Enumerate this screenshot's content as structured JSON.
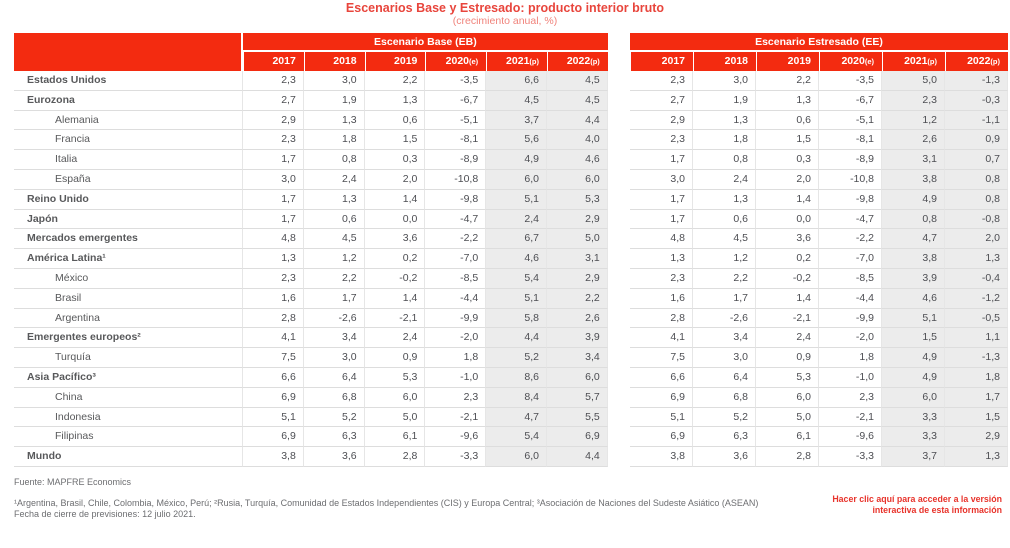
{
  "title": "Escenarios Base y Estresado: producto interior bruto",
  "subtitle": "(crecimiento anual, %)",
  "colors": {
    "brand_red": "#f32b10",
    "title_red": "#e8453c",
    "shaded_column_bg": "#ececec",
    "body_text_gray": "#4d4e53"
  },
  "chart_data": {
    "type": "table",
    "title": "Escenarios Base y Estresado: producto interior bruto",
    "subtitle": "(crecimiento anual, %)",
    "columns": [
      {
        "year": "2017",
        "tag": ""
      },
      {
        "year": "2018",
        "tag": ""
      },
      {
        "year": "2019",
        "tag": ""
      },
      {
        "year": "2020",
        "tag": "(e)"
      },
      {
        "year": "2021",
        "tag": "(p)"
      },
      {
        "year": "2022",
        "tag": "(p)"
      }
    ],
    "shaded_column_indexes": [
      4,
      5
    ],
    "row_labels": [
      {
        "label": "Estados Unidos",
        "indent": 0
      },
      {
        "label": "Eurozona",
        "indent": 0
      },
      {
        "label": "Alemania",
        "indent": 1
      },
      {
        "label": "Francia",
        "indent": 1
      },
      {
        "label": "Italia",
        "indent": 1
      },
      {
        "label": "España",
        "indent": 1
      },
      {
        "label": "Reino Unido",
        "indent": 0
      },
      {
        "label": "Japón",
        "indent": 0
      },
      {
        "label": "Mercados emergentes",
        "indent": 0
      },
      {
        "label": "América Latina¹",
        "indent": 0
      },
      {
        "label": "México",
        "indent": 1
      },
      {
        "label": "Brasil",
        "indent": 1
      },
      {
        "label": "Argentina",
        "indent": 1
      },
      {
        "label": "Emergentes europeos²",
        "indent": 0
      },
      {
        "label": "Turquía",
        "indent": 1
      },
      {
        "label": "Asia Pacífico³",
        "indent": 0
      },
      {
        "label": "China",
        "indent": 1
      },
      {
        "label": "Indonesia",
        "indent": 1
      },
      {
        "label": "Filipinas",
        "indent": 1
      },
      {
        "label": "Mundo",
        "indent": 0
      }
    ],
    "scenarios": [
      {
        "name": "Escenario Base (EB)",
        "rows": [
          [
            2.3,
            3.0,
            2.2,
            -3.5,
            6.6,
            4.5
          ],
          [
            2.7,
            1.9,
            1.3,
            -6.7,
            4.5,
            4.5
          ],
          [
            2.9,
            1.3,
            0.6,
            -5.1,
            3.7,
            4.4
          ],
          [
            2.3,
            1.8,
            1.5,
            -8.1,
            5.6,
            4.0
          ],
          [
            1.7,
            0.8,
            0.3,
            -8.9,
            4.9,
            4.6
          ],
          [
            3.0,
            2.4,
            2.0,
            -10.8,
            6.0,
            6.0
          ],
          [
            1.7,
            1.3,
            1.4,
            -9.8,
            5.1,
            5.3
          ],
          [
            1.7,
            0.6,
            0.0,
            -4.7,
            2.4,
            2.9
          ],
          [
            4.8,
            4.5,
            3.6,
            -2.2,
            6.7,
            5.0
          ],
          [
            1.3,
            1.2,
            0.2,
            -7.0,
            4.6,
            3.1
          ],
          [
            2.3,
            2.2,
            -0.2,
            -8.5,
            5.4,
            2.9
          ],
          [
            1.6,
            1.7,
            1.4,
            -4.4,
            5.1,
            2.2
          ],
          [
            2.8,
            -2.6,
            -2.1,
            -9.9,
            5.8,
            2.6
          ],
          [
            4.1,
            3.4,
            2.4,
            -2.0,
            4.4,
            3.9
          ],
          [
            7.5,
            3.0,
            0.9,
            1.8,
            5.2,
            3.4
          ],
          [
            6.6,
            6.4,
            5.3,
            -1.0,
            8.6,
            6.0
          ],
          [
            6.9,
            6.8,
            6.0,
            2.3,
            8.4,
            5.7
          ],
          [
            5.1,
            5.2,
            5.0,
            -2.1,
            4.7,
            5.5
          ],
          [
            6.9,
            6.3,
            6.1,
            -9.6,
            5.4,
            6.9
          ],
          [
            3.8,
            3.6,
            2.8,
            -3.3,
            6.0,
            4.4
          ]
        ]
      },
      {
        "name": "Escenario Estresado (EE)",
        "rows": [
          [
            2.3,
            3.0,
            2.2,
            -3.5,
            5.0,
            -1.3
          ],
          [
            2.7,
            1.9,
            1.3,
            -6.7,
            2.3,
            -0.3
          ],
          [
            2.9,
            1.3,
            0.6,
            -5.1,
            1.2,
            -1.1
          ],
          [
            2.3,
            1.8,
            1.5,
            -8.1,
            2.6,
            0.9
          ],
          [
            1.7,
            0.8,
            0.3,
            -8.9,
            3.1,
            0.7
          ],
          [
            3.0,
            2.4,
            2.0,
            -10.8,
            3.8,
            0.8
          ],
          [
            1.7,
            1.3,
            1.4,
            -9.8,
            4.9,
            0.8
          ],
          [
            1.7,
            0.6,
            0.0,
            -4.7,
            0.8,
            -0.8
          ],
          [
            4.8,
            4.5,
            3.6,
            -2.2,
            4.7,
            2.0
          ],
          [
            1.3,
            1.2,
            0.2,
            -7.0,
            3.8,
            1.3
          ],
          [
            2.3,
            2.2,
            -0.2,
            -8.5,
            3.9,
            -0.4
          ],
          [
            1.6,
            1.7,
            1.4,
            -4.4,
            4.6,
            -1.2
          ],
          [
            2.8,
            -2.6,
            -2.1,
            -9.9,
            5.1,
            -0.5
          ],
          [
            4.1,
            3.4,
            2.4,
            -2.0,
            1.5,
            1.1
          ],
          [
            7.5,
            3.0,
            0.9,
            1.8,
            4.9,
            -1.3
          ],
          [
            6.6,
            6.4,
            5.3,
            -1.0,
            4.9,
            1.8
          ],
          [
            6.9,
            6.8,
            6.0,
            2.3,
            6.0,
            1.7
          ],
          [
            5.1,
            5.2,
            5.0,
            -2.1,
            3.3,
            1.5
          ],
          [
            6.9,
            6.3,
            6.1,
            -9.6,
            3.3,
            2.9
          ],
          [
            3.8,
            3.6,
            2.8,
            -3.3,
            3.7,
            1.3
          ]
        ]
      }
    ]
  },
  "footer": {
    "source": "Fuente: MAPFRE Economics",
    "footnote": "¹Argentina, Brasil, Chile, Colombia, México, Perú; ²Rusia, Turquía, Comunidad de Estados Independientes (CIS) y Europa Central; ³Asociación de Naciones del Sudeste Asiático (ASEAN)",
    "closing": "Fecha de cierre de previsiones: 12 julio 2021.",
    "link": "Hacer clic aquí para acceder a la versión interactiva de esta información"
  }
}
